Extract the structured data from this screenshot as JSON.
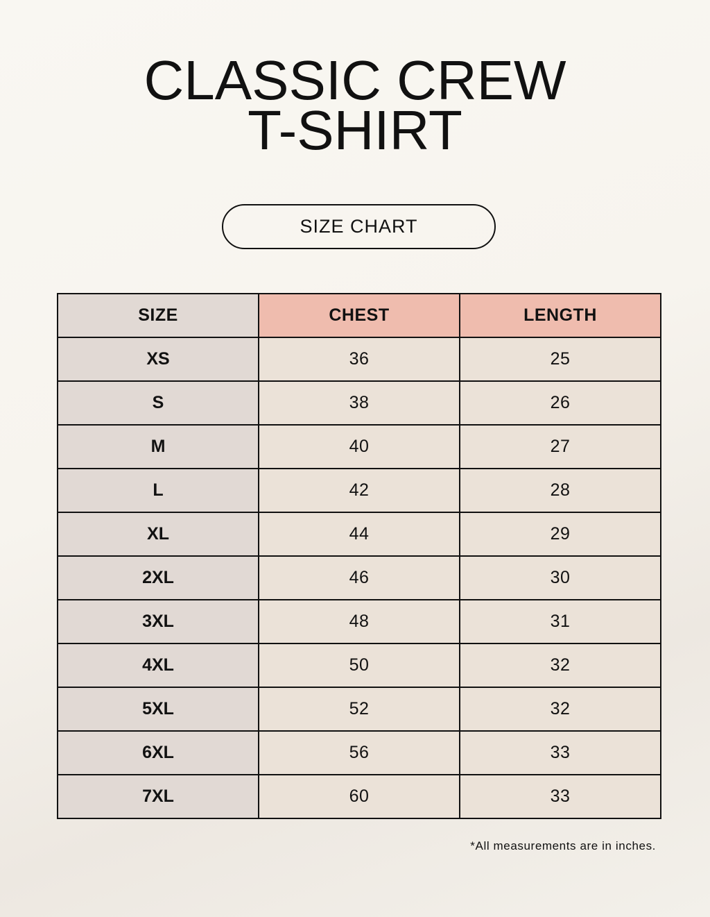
{
  "title": {
    "line1": "CLASSIC CREW",
    "line2": "T-SHIRT"
  },
  "badge": "SIZE CHART",
  "table": {
    "headers": [
      "SIZE",
      "CHEST",
      "LENGTH"
    ],
    "rows": [
      [
        "XS",
        "36",
        "25"
      ],
      [
        "S",
        "38",
        "26"
      ],
      [
        "M",
        "40",
        "27"
      ],
      [
        "L",
        "42",
        "28"
      ],
      [
        "XL",
        "44",
        "29"
      ],
      [
        "2XL",
        "46",
        "30"
      ],
      [
        "3XL",
        "48",
        "31"
      ],
      [
        "4XL",
        "50",
        "32"
      ],
      [
        "5XL",
        "52",
        "32"
      ],
      [
        "6XL",
        "56",
        "33"
      ],
      [
        "7XL",
        "60",
        "33"
      ]
    ]
  },
  "note": "*All measurements are in inches.",
  "colors": {
    "size_column": "#e1d9d4",
    "header_accent": "#efbcae",
    "cell": "#ebe2d8"
  }
}
